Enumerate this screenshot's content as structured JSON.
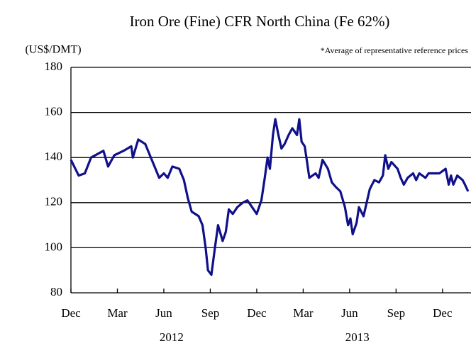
{
  "chart_data": {
    "type": "line",
    "title": "Iron Ore (Fine) CFR North China (Fe 62%)",
    "y_label": "(US$/DMT)",
    "note": "*Average of representative reference prices",
    "xlim": [
      0,
      25.84
    ],
    "xticks": [
      {
        "value": 0,
        "label": "Dec"
      },
      {
        "value": 3,
        "label": "Mar"
      },
      {
        "value": 6,
        "label": "Jun"
      },
      {
        "value": 9,
        "label": "Sep"
      },
      {
        "value": 12,
        "label": "Dec"
      },
      {
        "value": 15,
        "label": "Mar"
      },
      {
        "value": 18,
        "label": "Jun"
      },
      {
        "value": 21,
        "label": "Sep"
      },
      {
        "value": 24,
        "label": "Dec"
      }
    ],
    "year_labels": [
      "2012",
      "2013"
    ],
    "ylim": [
      80,
      180
    ],
    "yticks": [
      80,
      100,
      120,
      140,
      160,
      180
    ],
    "grid": true,
    "series": [
      {
        "color": "#10108a",
        "x": [
          0,
          0.5,
          0.9,
          1.3,
          2.1,
          2.4,
          2.8,
          3.4,
          3.9,
          4.0,
          4.35,
          4.8,
          5.1,
          5.4,
          5.7,
          6.0,
          6.25,
          6.55,
          7.0,
          7.3,
          7.55,
          7.8,
          8.25,
          8.5,
          8.7,
          8.85,
          9.07,
          9.3,
          9.5,
          9.8,
          10.0,
          10.2,
          10.45,
          10.75,
          11.1,
          11.4,
          11.7,
          12.0,
          12.3,
          12.5,
          12.7,
          12.85,
          13.05,
          13.2,
          13.4,
          13.6,
          13.8,
          14.06,
          14.3,
          14.6,
          14.75,
          14.9,
          15.1,
          15.25,
          15.4,
          15.8,
          16.0,
          16.25,
          16.6,
          16.85,
          17.1,
          17.4,
          17.7,
          17.9,
          18.05,
          18.2,
          18.45,
          18.6,
          18.9,
          19.1,
          19.3,
          19.6,
          19.9,
          20.15,
          20.3,
          20.5,
          20.7,
          21.1,
          21.3,
          21.5,
          21.75,
          22.1,
          22.3,
          22.5,
          22.9,
          23.1,
          23.8,
          24.2,
          24.4,
          24.55,
          24.7,
          24.95,
          25.3,
          25.45,
          25.65
        ],
        "values": [
          139,
          132,
          133,
          140,
          143,
          136,
          141,
          143,
          145,
          140,
          148,
          146,
          141,
          136,
          131,
          133,
          131,
          136,
          135,
          130,
          122,
          116,
          114,
          110,
          100,
          90,
          88,
          100,
          110,
          103,
          107,
          117,
          115,
          118,
          120,
          121,
          118,
          115,
          121,
          130,
          140,
          135,
          150,
          157,
          150,
          144,
          146,
          150,
          153,
          150,
          157,
          147,
          145,
          138,
          131,
          133,
          131,
          139,
          135,
          129,
          127,
          125,
          118,
          110,
          113,
          106,
          111,
          118,
          114,
          120,
          126,
          130,
          129,
          132,
          141,
          135,
          138,
          135,
          131,
          128,
          131,
          133,
          130,
          133,
          131,
          133,
          133,
          135,
          128,
          132,
          128,
          132,
          130,
          128,
          125
        ]
      }
    ]
  }
}
